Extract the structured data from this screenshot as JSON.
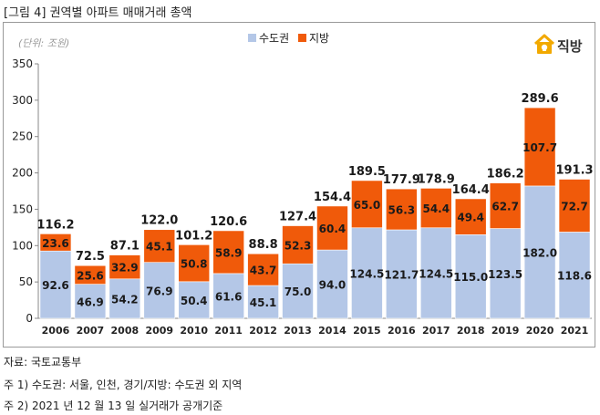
{
  "figure_title": "[그림 4] 권역별 아파트 매매거래 총액",
  "unit_label": "(단위: 조원)",
  "brand": {
    "name": "직방",
    "logo_icon": "house-icon",
    "color": "#f2a900"
  },
  "chart_data": {
    "type": "bar",
    "stacked": true,
    "categories": [
      "2006",
      "2007",
      "2008",
      "2009",
      "2010",
      "2011",
      "2012",
      "2013",
      "2014",
      "2015",
      "2016",
      "2017",
      "2018",
      "2019",
      "2020",
      "2021"
    ],
    "series": [
      {
        "name": "수도권",
        "color": "#b4c7e7",
        "values": [
          92.6,
          46.9,
          54.2,
          76.9,
          50.4,
          61.6,
          45.1,
          75.0,
          94.0,
          124.5,
          121.7,
          124.5,
          115.0,
          123.5,
          182.0,
          118.6
        ],
        "labels": [
          "92.6",
          "46.9",
          "54.2",
          "76.9",
          "50.4",
          "61.6",
          "45.1",
          "75.0",
          "94.0",
          "124.5",
          "121.7",
          "124.5",
          "115.0",
          "123.5",
          "182.0",
          "118.6"
        ]
      },
      {
        "name": "지방",
        "color": "#f05a0a",
        "values": [
          23.6,
          25.6,
          32.9,
          45.1,
          50.8,
          58.9,
          43.7,
          52.3,
          60.4,
          65.0,
          56.3,
          54.4,
          49.4,
          62.7,
          107.7,
          72.7
        ],
        "labels": [
          "23.6",
          "25.6",
          "32.9",
          "45.1",
          "50.8",
          "58.9",
          "43.7",
          "52.3",
          "60.4",
          "65.0",
          "56.3",
          "54.4",
          "49.4",
          "62.7",
          "107.7",
          "72.7"
        ]
      }
    ],
    "totals": [
      116.2,
      72.5,
      87.1,
      122.0,
      101.2,
      120.6,
      88.8,
      127.4,
      154.4,
      189.5,
      177.9,
      178.9,
      164.4,
      186.2,
      289.6,
      191.3
    ],
    "total_labels": [
      "116.2",
      "72.5",
      "87.1",
      "122.0",
      "101.2",
      "120.6",
      "88.8",
      "127.4",
      "154.4",
      "189.5",
      "177.9",
      "178.9",
      "164.4",
      "186.2",
      "289.6",
      "191.3"
    ],
    "ylim": [
      0,
      350
    ],
    "yticks": [
      0,
      50,
      100,
      150,
      200,
      250,
      300,
      350
    ],
    "grid": false,
    "legend_position": "top-center"
  },
  "notes": [
    "자료: 국토교통부",
    "주 1) 수도권: 서울, 인천, 경기/지방: 수도권 외 지역",
    "주 2) 2021 년 12 월 13 일 실거래가 공개기준"
  ]
}
